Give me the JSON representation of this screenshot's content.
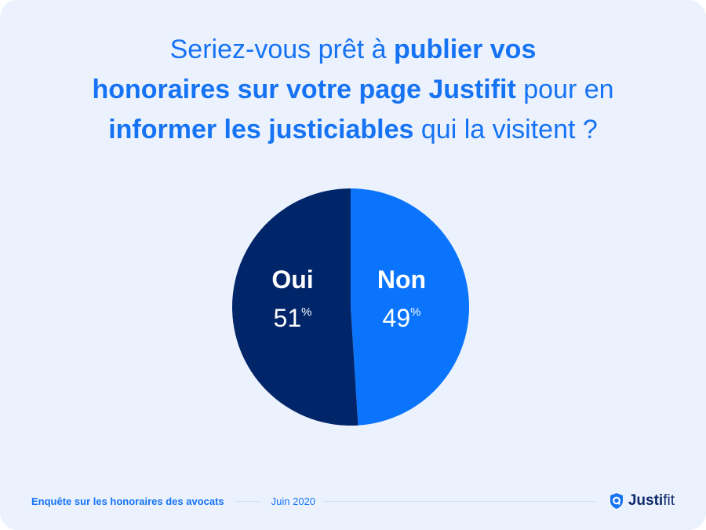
{
  "title": {
    "parts": [
      {
        "text": "Seriez-vous prêt à ",
        "bold": false
      },
      {
        "text": "publier vos",
        "bold": true
      },
      {
        "text": "honoraires sur votre page Justifit",
        "bold": true
      },
      {
        "text": " pour en",
        "bold": false
      },
      {
        "text": "informer les justiciables",
        "bold": true
      },
      {
        "text": " qui la visitent ?",
        "bold": false
      }
    ]
  },
  "chart_data": {
    "type": "pie",
    "title": "Seriez-vous prêt à publier vos honoraires sur votre page Justifit pour en informer les justiciables qui la visitent ?",
    "slices": [
      {
        "label": "Non",
        "value": 49,
        "display": "49",
        "color": "#0a74fc"
      },
      {
        "label": "Oui",
        "value": 51,
        "display": "51",
        "color": "#002569"
      }
    ],
    "unit": "%"
  },
  "footer": {
    "survey": "Enquête sur les honoraires des avocats",
    "date": "Juin 2020",
    "brand_a": "Justi",
    "brand_b": "fit"
  },
  "colors": {
    "accent": "#1673f4",
    "background": "#ecf2fd",
    "brand_dark": "#0d2a6b"
  }
}
